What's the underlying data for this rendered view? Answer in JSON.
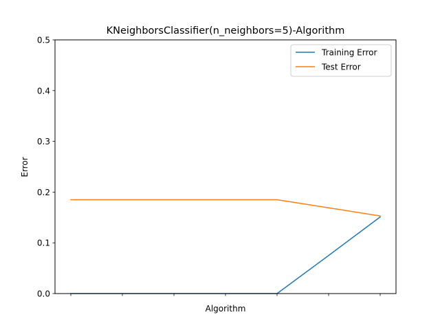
{
  "chart_data": {
    "type": "line",
    "title": "KNeighborsClassifier(n_neighbors=5)-Algorithm",
    "xlabel": "Algorithm",
    "ylabel": "Error",
    "x": [
      0,
      1,
      2,
      3,
      4,
      5,
      6
    ],
    "x_tick_labels": [
      "",
      "",
      "",
      "",
      "",
      "",
      ""
    ],
    "ylim": [
      0,
      0.5
    ],
    "y_ticks": [
      0.0,
      0.1,
      0.2,
      0.3,
      0.4,
      0.5
    ],
    "y_tick_labels": [
      "0.0",
      "0.1",
      "0.2",
      "0.3",
      "0.4",
      "0.5"
    ],
    "grid": false,
    "legend_position": "upper right",
    "series": [
      {
        "name": "Training Error",
        "color": "#1f77b4",
        "values": [
          0.0,
          0.0,
          0.0,
          0.0,
          0.0,
          0.075,
          0.151
        ]
      },
      {
        "name": "Test Error",
        "color": "#ff7f0e",
        "values": [
          0.185,
          0.185,
          0.185,
          0.185,
          0.185,
          0.169,
          0.153
        ]
      }
    ]
  }
}
